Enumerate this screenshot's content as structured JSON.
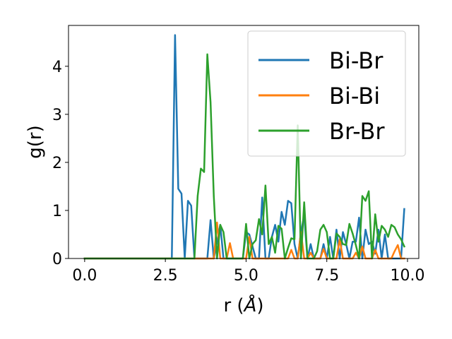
{
  "chart_data": {
    "type": "line",
    "xlabel": "r (",
    "xlabel_unit": "Å",
    "xlabel_close": ")",
    "ylabel": "g(r)",
    "xlim": [
      -0.5,
      10.35
    ],
    "ylim": [
      0,
      4.85
    ],
    "xticks": [
      0.0,
      2.5,
      5.0,
      7.5,
      10.0
    ],
    "xtick_labels": [
      "0.0",
      "2.5",
      "5.0",
      "7.5",
      "10.0"
    ],
    "yticks": [
      0,
      1,
      2,
      3,
      4
    ],
    "ytick_labels": [
      "0",
      "1",
      "2",
      "3",
      "4"
    ],
    "grid": false,
    "legend_position": "top-right",
    "series": [
      {
        "name": "Bi-Br",
        "color": "#1f77b4",
        "x": [
          0.0,
          2.7,
          2.8,
          2.9,
          3.0,
          3.1,
          3.2,
          3.3,
          3.4,
          3.8,
          3.9,
          4.0,
          4.2,
          4.3,
          4.4,
          4.9,
          5.0,
          5.1,
          5.3,
          5.4,
          5.5,
          5.6,
          5.7,
          5.8,
          5.9,
          6.0,
          6.1,
          6.2,
          6.3,
          6.4,
          6.5,
          6.6,
          6.7,
          6.8,
          6.9,
          7.0,
          7.1,
          7.3,
          7.4,
          7.5,
          7.6,
          7.7,
          7.8,
          7.9,
          8.0,
          8.1,
          8.2,
          8.3,
          8.4,
          8.5,
          8.6,
          8.7,
          8.8,
          8.9,
          9.0,
          9.1,
          9.2,
          9.3,
          9.4,
          9.5,
          9.6,
          9.7,
          9.8,
          9.9
        ],
        "y": [
          0.0,
          0.0,
          4.65,
          1.45,
          1.35,
          0.0,
          1.2,
          1.1,
          0.0,
          0.0,
          0.8,
          0.0,
          0.7,
          0.0,
          0.0,
          0.0,
          0.55,
          0.5,
          0.0,
          0.0,
          1.27,
          0.0,
          0.0,
          0.45,
          0.7,
          0.35,
          0.97,
          0.7,
          1.2,
          1.15,
          0.3,
          0.0,
          0.55,
          0.9,
          0.0,
          0.3,
          0.0,
          0.0,
          0.3,
          0.0,
          0.45,
          0.0,
          0.6,
          0.0,
          0.55,
          0.3,
          0.0,
          0.35,
          0.35,
          0.85,
          0.0,
          0.6,
          0.3,
          0.35,
          0.1,
          0.6,
          0.0,
          0.5,
          0.0,
          0.0,
          0.0,
          0.0,
          0.0,
          1.03
        ]
      },
      {
        "name": "Bi-Bi",
        "color": "#ff7f0e",
        "x": [
          0.0,
          3.9,
          4.0,
          4.1,
          4.2,
          4.3,
          4.4,
          4.5,
          4.6,
          4.7,
          5.0,
          5.1,
          5.2,
          5.3,
          5.4,
          5.5,
          5.6,
          5.7,
          5.8,
          5.9,
          6.0,
          6.1,
          6.2,
          6.3,
          6.4,
          6.5,
          6.6,
          6.7,
          6.8,
          6.9,
          7.0,
          7.1,
          7.2,
          7.3,
          7.4,
          7.5,
          7.6,
          7.7,
          7.8,
          7.9,
          8.0,
          8.1,
          8.2,
          8.3,
          8.4,
          8.5,
          8.6,
          8.7,
          8.8,
          8.9,
          9.0,
          9.1,
          9.2,
          9.3,
          9.4,
          9.5,
          9.6,
          9.7,
          9.8,
          9.9
        ],
        "y": [
          0.0,
          0.0,
          0.0,
          0.75,
          0.0,
          0.0,
          0.0,
          0.32,
          0.0,
          0.0,
          0.0,
          0.45,
          0.0,
          0.0,
          0.0,
          0.0,
          0.0,
          0.0,
          0.0,
          0.0,
          0.0,
          0.0,
          0.0,
          0.0,
          0.18,
          0.0,
          0.0,
          0.55,
          0.0,
          0.0,
          0.12,
          0.0,
          0.0,
          0.0,
          0.2,
          0.0,
          0.0,
          0.0,
          0.0,
          0.4,
          0.0,
          0.0,
          0.0,
          0.0,
          0.12,
          0.0,
          0.25,
          0.0,
          0.0,
          0.0,
          0.18,
          0.0,
          0.0,
          0.0,
          0.0,
          0.0,
          0.15,
          0.28,
          0.0,
          0.0
        ]
      },
      {
        "name": "Br-Br",
        "color": "#2ca02c",
        "x": [
          0.0,
          3.4,
          3.5,
          3.6,
          3.7,
          3.8,
          3.9,
          4.0,
          4.1,
          4.2,
          4.3,
          4.4,
          4.5,
          4.6,
          4.7,
          4.8,
          4.9,
          5.0,
          5.1,
          5.2,
          5.3,
          5.4,
          5.5,
          5.6,
          5.7,
          5.8,
          5.9,
          6.0,
          6.1,
          6.2,
          6.3,
          6.4,
          6.5,
          6.6,
          6.7,
          6.8,
          6.9,
          7.0,
          7.1,
          7.2,
          7.3,
          7.4,
          7.5,
          7.6,
          7.7,
          7.8,
          7.9,
          8.0,
          8.1,
          8.2,
          8.3,
          8.4,
          8.5,
          8.6,
          8.7,
          8.8,
          8.9,
          9.0,
          9.1,
          9.2,
          9.3,
          9.4,
          9.5,
          9.6,
          9.7,
          9.8,
          9.9
        ],
        "y": [
          0.0,
          0.0,
          1.3,
          1.87,
          1.8,
          4.25,
          3.25,
          1.3,
          0.0,
          0.7,
          0.55,
          0.0,
          0.0,
          0.0,
          0.0,
          0.0,
          0.0,
          0.72,
          0.0,
          0.3,
          0.38,
          0.82,
          0.5,
          1.52,
          0.3,
          0.45,
          0.12,
          0.68,
          0.62,
          0.0,
          0.22,
          0.42,
          0.4,
          2.77,
          0.0,
          1.17,
          0.0,
          0.0,
          0.0,
          0.15,
          0.6,
          0.7,
          0.55,
          0.0,
          0.0,
          0.52,
          0.45,
          0.3,
          0.28,
          0.72,
          0.52,
          0.28,
          0.0,
          1.3,
          1.2,
          1.4,
          0.0,
          0.92,
          0.35,
          0.68,
          0.6,
          0.45,
          0.7,
          0.65,
          0.5,
          0.4,
          0.25
        ]
      }
    ]
  }
}
